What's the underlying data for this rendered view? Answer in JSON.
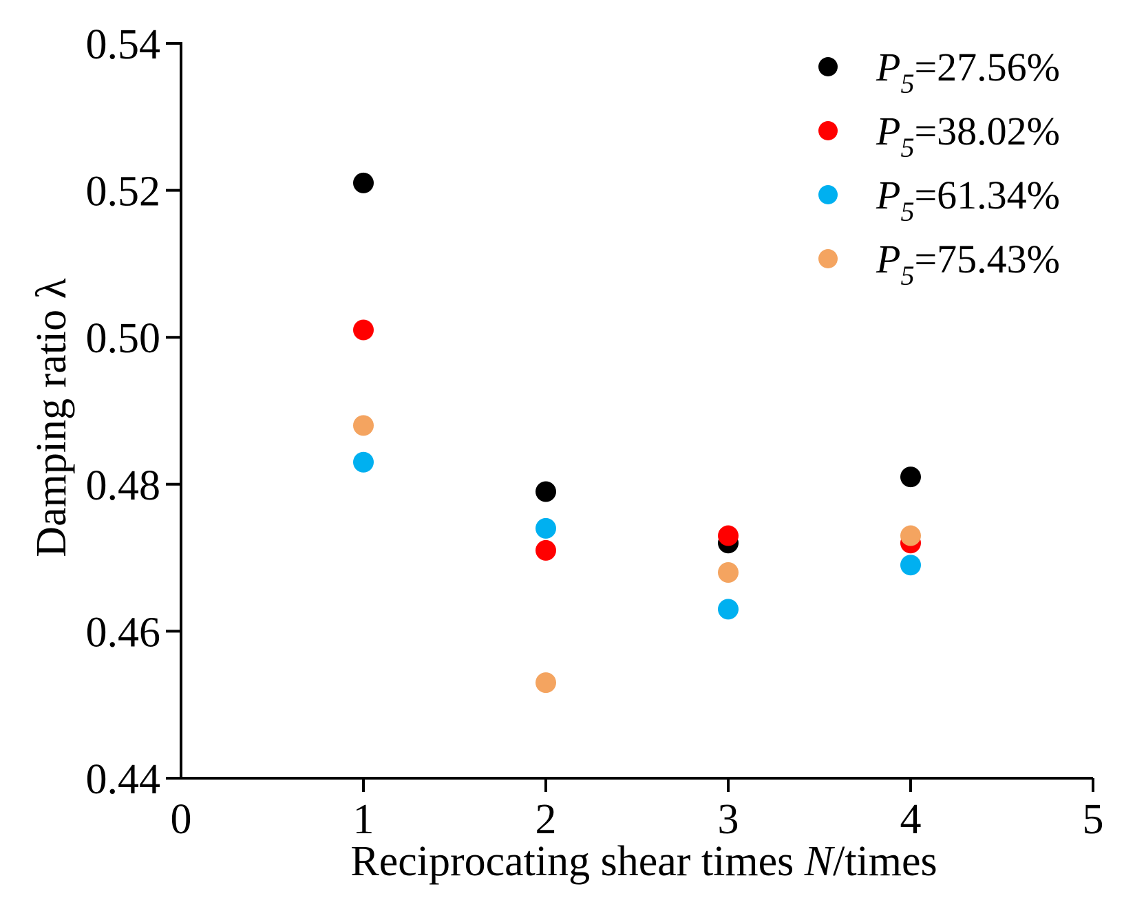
{
  "chart_data": {
    "type": "scatter",
    "title": "",
    "xlabel": "Reciprocating shear times N/times",
    "xlabel_parts": {
      "before": "Reciprocating shear times ",
      "italic": "N",
      "after": "/times"
    },
    "ylabel": "Damping ratio λ",
    "xlim": [
      0,
      5
    ],
    "ylim": [
      0.44,
      0.54
    ],
    "xticks": [
      0,
      1,
      2,
      3,
      4,
      5
    ],
    "xtick_labels": [
      "0",
      "1",
      "2",
      "3",
      "4",
      "5"
    ],
    "yticks": [
      0.44,
      0.46,
      0.48,
      0.5,
      0.52,
      0.54
    ],
    "ytick_labels": [
      "0.44",
      "0.46",
      "0.48",
      "0.50",
      "0.52",
      "0.54"
    ],
    "grid": false,
    "legend_position": "top-right",
    "x": [
      1,
      2,
      3,
      4
    ],
    "series": [
      {
        "name": "P5=27.56%",
        "symbol": "P",
        "subscript": "5",
        "value_text": "=27.56%",
        "color": "#000000",
        "values": [
          0.521,
          0.479,
          0.472,
          0.481
        ]
      },
      {
        "name": "P5=38.02%",
        "symbol": "P",
        "subscript": "5",
        "value_text": "=38.02%",
        "color": "#ff0000",
        "values": [
          0.501,
          0.471,
          0.473,
          0.472
        ]
      },
      {
        "name": "P5=61.34%",
        "symbol": "P",
        "subscript": "5",
        "value_text": "=61.34%",
        "color": "#00b0f0",
        "values": [
          0.483,
          0.474,
          0.463,
          0.469
        ]
      },
      {
        "name": "P5=75.43%",
        "symbol": "P",
        "subscript": "5",
        "value_text": "=75.43%",
        "color": "#f4a460",
        "values": [
          0.488,
          0.453,
          0.468,
          0.473
        ]
      }
    ]
  }
}
